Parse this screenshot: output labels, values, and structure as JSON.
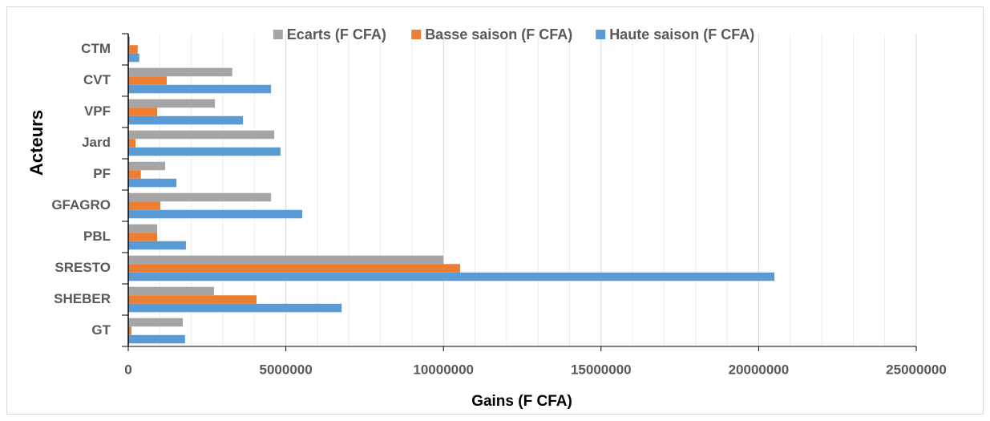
{
  "chart_data": {
    "type": "hbar",
    "x_label": "Gains (F CFA)",
    "y_label": "Acteurs",
    "categories": [
      "CTM",
      "CVT",
      "VPF",
      "Jard",
      "PF",
      "GFAGRO",
      "PBL",
      "SRESTO",
      "SHEBER",
      "GT"
    ],
    "series": [
      {
        "name": "Ecarts (F CFA)",
        "color": "#a5a5a5",
        "values": [
          50000,
          3300000,
          2750000,
          4630000,
          1170000,
          4530000,
          920000,
          10000000,
          2720000,
          1730000
        ]
      },
      {
        "name": "Basse saison (F CFA)",
        "color": "#ed7d31",
        "values": [
          300000,
          1220000,
          920000,
          230000,
          400000,
          1020000,
          920000,
          10530000,
          4070000,
          100000
        ]
      },
      {
        "name": "Haute saison (F CFA)",
        "color": "#5b9bd5",
        "values": [
          350000,
          4530000,
          3640000,
          4830000,
          1530000,
          5520000,
          1830000,
          20500000,
          6770000,
          1800000
        ]
      }
    ],
    "xlim": [
      0,
      25000000
    ],
    "xticks": [
      0,
      5000000,
      10000000,
      15000000,
      20000000,
      25000000
    ],
    "xminorticks": [
      1000000,
      2000000,
      3000000,
      4000000,
      6000000,
      7000000,
      8000000,
      9000000,
      11000000,
      12000000,
      13000000,
      14000000,
      16000000,
      17000000,
      18000000,
      19000000,
      21000000,
      22000000,
      23000000,
      24000000
    ],
    "grid": true,
    "legend": "top"
  }
}
